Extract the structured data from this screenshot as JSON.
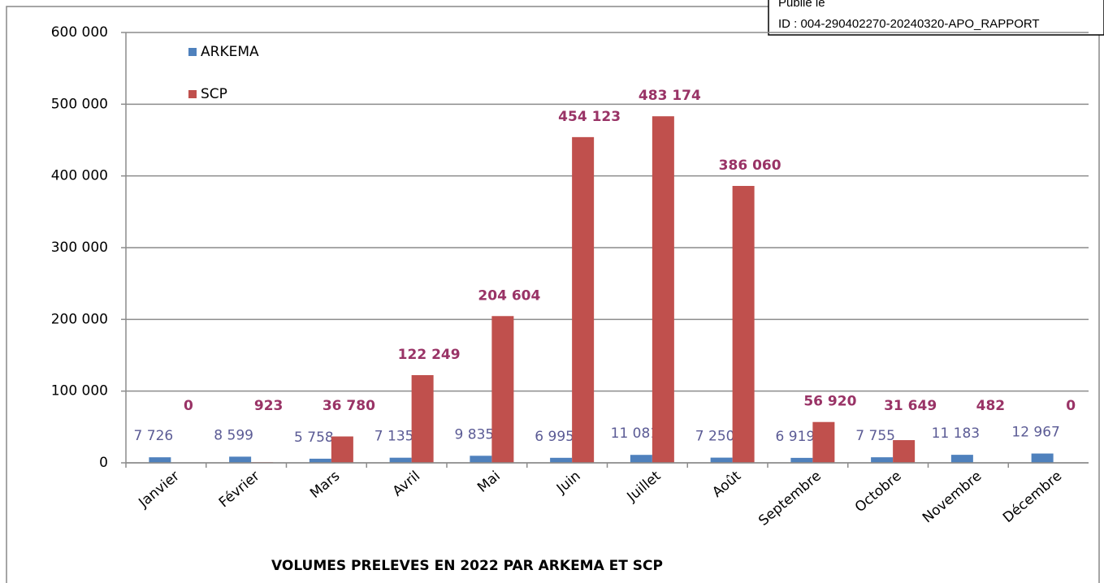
{
  "stamp": {
    "line1": "Publié le",
    "line2": "ID : 004-290402270-20240320-APO_RAPPORT"
  },
  "chart_data": {
    "type": "bar",
    "title": "VOLUMES PRELEVES EN 2022 PAR ARKEMA ET SCP",
    "categories": [
      "Janvier",
      "Février",
      "Mars",
      "Avril",
      "Mai",
      "Juin",
      "Juillet",
      "Août",
      "Septembre",
      "Octobre",
      "Novembre",
      "Décembre"
    ],
    "series": [
      {
        "name": "ARKEMA",
        "color": "#4f81bd",
        "values": [
          7726,
          8599,
          5758,
          7135,
          9835,
          6995,
          11081,
          7250,
          6919,
          7755,
          11183,
          12967
        ],
        "value_labels": [
          "7 726",
          "8 599",
          "5 758",
          "7 135",
          "9 835",
          "6 995",
          "11 081",
          "7 250",
          "6 919",
          "7 755",
          "11 183",
          "12 967"
        ]
      },
      {
        "name": "SCP",
        "color": "#c0504d",
        "values": [
          0,
          923,
          36780,
          122249,
          204604,
          454123,
          483174,
          386060,
          56920,
          31649,
          482,
          0
        ],
        "value_labels": [
          "0",
          "923",
          "36 780",
          "122 249",
          "204 604",
          "454 123",
          "483 174",
          "386 060",
          "56 920",
          "31 649",
          "482",
          "0"
        ]
      }
    ],
    "ylim": [
      0,
      600000
    ],
    "yticks": [
      0,
      {
        "value": 100000,
        "label": "100 000"
      },
      {
        "value": 200000,
        "label": "200 000"
      },
      {
        "value": 300000,
        "label": "300 000"
      },
      {
        "value": 400000,
        "label": "400 000"
      },
      {
        "value": 500000,
        "label": "500 000"
      },
      {
        "value": 600000,
        "label": "600 000"
      }
    ],
    "grid": true,
    "legend": "upper left"
  }
}
